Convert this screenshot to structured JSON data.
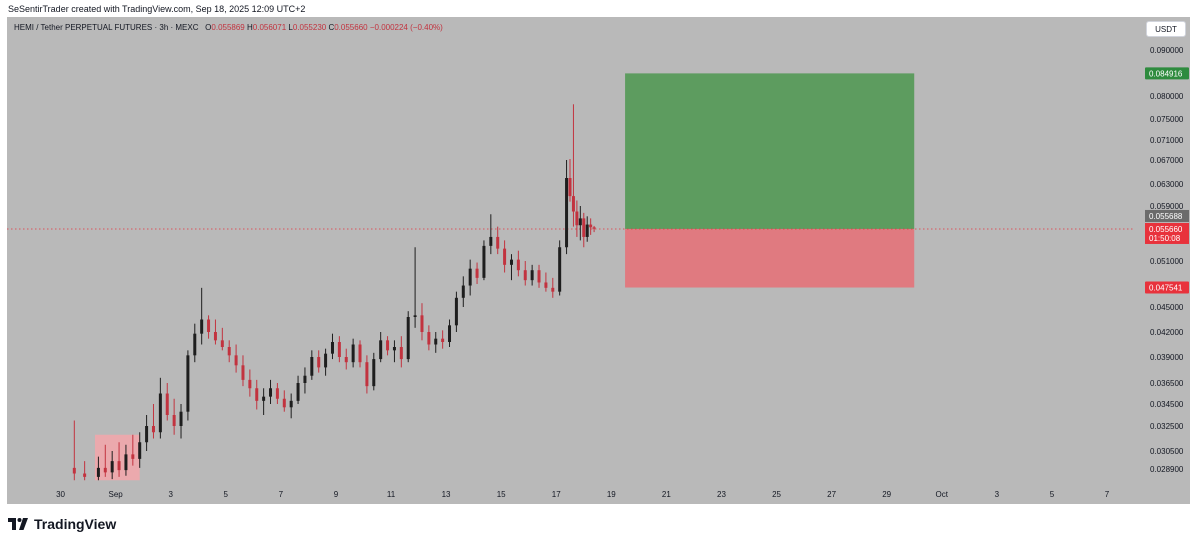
{
  "header": {
    "credit": "SeSentirTrader created with TradingView.com, Sep 18, 2025 12:09 UTC+2"
  },
  "legend": {
    "symbol": "HEMI / Tether PERPETUAL FUTURES · 3h · MEXC",
    "open_label": "O",
    "open": "0.055869",
    "high_label": "H",
    "high": "0.056071",
    "low_label": "L",
    "low": "0.055230",
    "close_label": "C",
    "close": "0.055660",
    "change": "−0.000224 (−0.40%)"
  },
  "currency_button": "USDT",
  "footer": {
    "logo_text": "TradingView"
  },
  "colors": {
    "background": "#b9b9b9",
    "up_candle": "#1e1e1e",
    "down_candle": "#c2333f",
    "target_zone": "#5d9c5f",
    "stop_zone": "#e07a80",
    "target_label": "#2e8b3e",
    "stop_label": "#e8323c",
    "price_line": "#e8323c"
  },
  "chart_data": {
    "type": "candlestick",
    "title": "HEMI / Tether PERPETUAL FUTURES · 3h · MEXC",
    "xlabel": "",
    "ylabel": "",
    "ylim": [
      0.0279,
      0.0927
    ],
    "x_range": [
      "2025-08-29",
      "2025-10-07"
    ],
    "grid": false,
    "x_ticks": [
      {
        "date": "2025-08-30",
        "label": "30"
      },
      {
        "date": "2025-09-01",
        "label": "Sep"
      },
      {
        "date": "2025-09-03",
        "label": "3"
      },
      {
        "date": "2025-09-05",
        "label": "5"
      },
      {
        "date": "2025-09-07",
        "label": "7"
      },
      {
        "date": "2025-09-09",
        "label": "9"
      },
      {
        "date": "2025-09-11",
        "label": "11"
      },
      {
        "date": "2025-09-13",
        "label": "13"
      },
      {
        "date": "2025-09-15",
        "label": "15"
      },
      {
        "date": "2025-09-17",
        "label": "17"
      },
      {
        "date": "2025-09-19",
        "label": "19"
      },
      {
        "date": "2025-09-21",
        "label": "21"
      },
      {
        "date": "2025-09-23",
        "label": "23"
      },
      {
        "date": "2025-09-25",
        "label": "25"
      },
      {
        "date": "2025-09-27",
        "label": "27"
      },
      {
        "date": "2025-09-29",
        "label": "29"
      },
      {
        "date": "2025-10-01",
        "label": "Oct"
      },
      {
        "date": "2025-10-03",
        "label": "3"
      },
      {
        "date": "2025-10-05",
        "label": "5"
      },
      {
        "date": "2025-10-07",
        "label": "7"
      }
    ],
    "y_ticks": [
      "0.090000",
      "0.080000",
      "0.075000",
      "0.071000",
      "0.067000",
      "0.063000",
      "0.059000",
      "0.051000",
      "0.045000",
      "0.042000",
      "0.039000",
      "0.036500",
      "0.034500",
      "0.032500",
      "0.030500",
      "0.028900"
    ],
    "price_labels": {
      "target": "0.084916",
      "current": "0.055688",
      "last": "0.055660",
      "countdown": "01:50:08",
      "stop": "0.047541"
    },
    "position": {
      "entry": 0.05566,
      "target": 0.084916,
      "stop": 0.047541,
      "start": "2025-09-19",
      "end": "2025-09-30"
    },
    "highlight_zone": {
      "start": "2025-08-31",
      "end": "2025-09-01",
      "low": 0.0279,
      "high": 0.0318
    },
    "candles": [
      {
        "t": "2025-08-30T12:00",
        "o": 0.029,
        "h": 0.033,
        "l": 0.0279,
        "c": 0.0285
      },
      {
        "t": "2025-08-30T21:00",
        "o": 0.0285,
        "h": 0.0296,
        "l": 0.0279,
        "c": 0.0282
      },
      {
        "t": "2025-08-31T09:00",
        "o": 0.0282,
        "h": 0.03,
        "l": 0.0279,
        "c": 0.029
      },
      {
        "t": "2025-08-31T15:00",
        "o": 0.029,
        "h": 0.031,
        "l": 0.0282,
        "c": 0.0286
      },
      {
        "t": "2025-08-31T21:00",
        "o": 0.0286,
        "h": 0.0305,
        "l": 0.028,
        "c": 0.0296
      },
      {
        "t": "2025-09-01T03:00",
        "o": 0.0296,
        "h": 0.0312,
        "l": 0.0282,
        "c": 0.0288
      },
      {
        "t": "2025-09-01T09:00",
        "o": 0.0288,
        "h": 0.031,
        "l": 0.0283,
        "c": 0.0302
      },
      {
        "t": "2025-09-01T15:00",
        "o": 0.0302,
        "h": 0.0318,
        "l": 0.0292,
        "c": 0.0298
      },
      {
        "t": "2025-09-01T21:00",
        "o": 0.0298,
        "h": 0.032,
        "l": 0.029,
        "c": 0.0312
      },
      {
        "t": "2025-09-02T03:00",
        "o": 0.0312,
        "h": 0.0335,
        "l": 0.0305,
        "c": 0.0325
      },
      {
        "t": "2025-09-02T09:00",
        "o": 0.0325,
        "h": 0.0345,
        "l": 0.0315,
        "c": 0.032
      },
      {
        "t": "2025-09-02T15:00",
        "o": 0.032,
        "h": 0.037,
        "l": 0.0315,
        "c": 0.0355
      },
      {
        "t": "2025-09-02T21:00",
        "o": 0.0355,
        "h": 0.0365,
        "l": 0.033,
        "c": 0.0335
      },
      {
        "t": "2025-09-03T03:00",
        "o": 0.0335,
        "h": 0.035,
        "l": 0.0318,
        "c": 0.0325
      },
      {
        "t": "2025-09-03T09:00",
        "o": 0.0325,
        "h": 0.0345,
        "l": 0.0315,
        "c": 0.0338
      },
      {
        "t": "2025-09-03T15:00",
        "o": 0.0338,
        "h": 0.0398,
        "l": 0.033,
        "c": 0.0392
      },
      {
        "t": "2025-09-03T21:00",
        "o": 0.0392,
        "h": 0.043,
        "l": 0.0385,
        "c": 0.0418
      },
      {
        "t": "2025-09-04T03:00",
        "o": 0.0418,
        "h": 0.0475,
        "l": 0.0405,
        "c": 0.0435
      },
      {
        "t": "2025-09-04T09:00",
        "o": 0.0435,
        "h": 0.044,
        "l": 0.0412,
        "c": 0.042
      },
      {
        "t": "2025-09-04T15:00",
        "o": 0.042,
        "h": 0.0435,
        "l": 0.0405,
        "c": 0.041
      },
      {
        "t": "2025-09-04T21:00",
        "o": 0.041,
        "h": 0.0425,
        "l": 0.0398,
        "c": 0.0402
      },
      {
        "t": "2025-09-05T03:00",
        "o": 0.0402,
        "h": 0.041,
        "l": 0.0385,
        "c": 0.0392
      },
      {
        "t": "2025-09-05T09:00",
        "o": 0.0392,
        "h": 0.0405,
        "l": 0.0375,
        "c": 0.0382
      },
      {
        "t": "2025-09-05T15:00",
        "o": 0.0382,
        "h": 0.0392,
        "l": 0.0362,
        "c": 0.0368
      },
      {
        "t": "2025-09-05T21:00",
        "o": 0.0368,
        "h": 0.0378,
        "l": 0.0352,
        "c": 0.036
      },
      {
        "t": "2025-09-06T03:00",
        "o": 0.036,
        "h": 0.0368,
        "l": 0.034,
        "c": 0.0348
      },
      {
        "t": "2025-09-06T09:00",
        "o": 0.0348,
        "h": 0.036,
        "l": 0.0335,
        "c": 0.0352
      },
      {
        "t": "2025-09-06T15:00",
        "o": 0.0352,
        "h": 0.0368,
        "l": 0.0345,
        "c": 0.036
      },
      {
        "t": "2025-09-06T21:00",
        "o": 0.036,
        "h": 0.0365,
        "l": 0.0345,
        "c": 0.035
      },
      {
        "t": "2025-09-07T03:00",
        "o": 0.035,
        "h": 0.0358,
        "l": 0.0338,
        "c": 0.0342
      },
      {
        "t": "2025-09-07T09:00",
        "o": 0.0342,
        "h": 0.0355,
        "l": 0.0332,
        "c": 0.0348
      },
      {
        "t": "2025-09-07T15:00",
        "o": 0.0348,
        "h": 0.0372,
        "l": 0.0345,
        "c": 0.0365
      },
      {
        "t": "2025-09-07T21:00",
        "o": 0.0365,
        "h": 0.038,
        "l": 0.0355,
        "c": 0.0372
      },
      {
        "t": "2025-09-08T03:00",
        "o": 0.0372,
        "h": 0.0398,
        "l": 0.0368,
        "c": 0.039
      },
      {
        "t": "2025-09-08T09:00",
        "o": 0.039,
        "h": 0.0398,
        "l": 0.0375,
        "c": 0.038
      },
      {
        "t": "2025-09-08T15:00",
        "o": 0.038,
        "h": 0.04,
        "l": 0.0372,
        "c": 0.0394
      },
      {
        "t": "2025-09-08T21:00",
        "o": 0.0394,
        "h": 0.0418,
        "l": 0.0388,
        "c": 0.0408
      },
      {
        "t": "2025-09-09T03:00",
        "o": 0.0408,
        "h": 0.0415,
        "l": 0.0385,
        "c": 0.039
      },
      {
        "t": "2025-09-09T09:00",
        "o": 0.039,
        "h": 0.04,
        "l": 0.0378,
        "c": 0.0385
      },
      {
        "t": "2025-09-09T15:00",
        "o": 0.0385,
        "h": 0.0412,
        "l": 0.038,
        "c": 0.0405
      },
      {
        "t": "2025-09-09T21:00",
        "o": 0.0405,
        "h": 0.041,
        "l": 0.038,
        "c": 0.0385
      },
      {
        "t": "2025-09-10T03:00",
        "o": 0.0385,
        "h": 0.0392,
        "l": 0.0355,
        "c": 0.0362
      },
      {
        "t": "2025-09-10T09:00",
        "o": 0.0362,
        "h": 0.0395,
        "l": 0.0358,
        "c": 0.0388
      },
      {
        "t": "2025-09-10T15:00",
        "o": 0.0388,
        "h": 0.042,
        "l": 0.0385,
        "c": 0.041
      },
      {
        "t": "2025-09-10T21:00",
        "o": 0.041,
        "h": 0.0415,
        "l": 0.0392,
        "c": 0.0398
      },
      {
        "t": "2025-09-11T03:00",
        "o": 0.0398,
        "h": 0.041,
        "l": 0.0385,
        "c": 0.0402
      },
      {
        "t": "2025-09-11T09:00",
        "o": 0.0402,
        "h": 0.0415,
        "l": 0.038,
        "c": 0.0388
      },
      {
        "t": "2025-09-11T15:00",
        "o": 0.0388,
        "h": 0.0445,
        "l": 0.0385,
        "c": 0.0438
      },
      {
        "t": "2025-09-11T21:00",
        "o": 0.0438,
        "h": 0.053,
        "l": 0.0425,
        "c": 0.044
      },
      {
        "t": "2025-09-12T03:00",
        "o": 0.044,
        "h": 0.0455,
        "l": 0.041,
        "c": 0.042
      },
      {
        "t": "2025-09-12T09:00",
        "o": 0.042,
        "h": 0.0428,
        "l": 0.0398,
        "c": 0.0405
      },
      {
        "t": "2025-09-12T15:00",
        "o": 0.0405,
        "h": 0.042,
        "l": 0.0395,
        "c": 0.0412
      },
      {
        "t": "2025-09-12T21:00",
        "o": 0.0412,
        "h": 0.0422,
        "l": 0.04,
        "c": 0.0408
      },
      {
        "t": "2025-09-13T03:00",
        "o": 0.0408,
        "h": 0.0435,
        "l": 0.0402,
        "c": 0.0428
      },
      {
        "t": "2025-09-13T09:00",
        "o": 0.0428,
        "h": 0.047,
        "l": 0.042,
        "c": 0.0462
      },
      {
        "t": "2025-09-13T15:00",
        "o": 0.0462,
        "h": 0.049,
        "l": 0.045,
        "c": 0.0478
      },
      {
        "t": "2025-09-13T21:00",
        "o": 0.0478,
        "h": 0.0512,
        "l": 0.0465,
        "c": 0.05
      },
      {
        "t": "2025-09-14T03:00",
        "o": 0.05,
        "h": 0.0508,
        "l": 0.048,
        "c": 0.0488
      },
      {
        "t": "2025-09-14T09:00",
        "o": 0.0488,
        "h": 0.054,
        "l": 0.0485,
        "c": 0.0532
      },
      {
        "t": "2025-09-14T15:00",
        "o": 0.0532,
        "h": 0.0578,
        "l": 0.052,
        "c": 0.0545
      },
      {
        "t": "2025-09-14T21:00",
        "o": 0.0545,
        "h": 0.056,
        "l": 0.052,
        "c": 0.0528
      },
      {
        "t": "2025-09-15T03:00",
        "o": 0.0528,
        "h": 0.054,
        "l": 0.0495,
        "c": 0.0505
      },
      {
        "t": "2025-09-15T09:00",
        "o": 0.0505,
        "h": 0.052,
        "l": 0.0485,
        "c": 0.0512
      },
      {
        "t": "2025-09-15T15:00",
        "o": 0.0512,
        "h": 0.0525,
        "l": 0.049,
        "c": 0.0498
      },
      {
        "t": "2025-09-15T21:00",
        "o": 0.0498,
        "h": 0.051,
        "l": 0.0478,
        "c": 0.0485
      },
      {
        "t": "2025-09-16T03:00",
        "o": 0.0485,
        "h": 0.0505,
        "l": 0.0478,
        "c": 0.0498
      },
      {
        "t": "2025-09-16T09:00",
        "o": 0.0498,
        "h": 0.0505,
        "l": 0.0475,
        "c": 0.0482
      },
      {
        "t": "2025-09-16T15:00",
        "o": 0.0482,
        "h": 0.0495,
        "l": 0.047,
        "c": 0.0475
      },
      {
        "t": "2025-09-16T21:00",
        "o": 0.0475,
        "h": 0.0488,
        "l": 0.0462,
        "c": 0.047
      },
      {
        "t": "2025-09-17T03:00",
        "o": 0.047,
        "h": 0.054,
        "l": 0.0465,
        "c": 0.053
      },
      {
        "t": "2025-09-17T09:00",
        "o": 0.053,
        "h": 0.067,
        "l": 0.052,
        "c": 0.064
      },
      {
        "t": "2025-09-17T12:00",
        "o": 0.064,
        "h": 0.0672,
        "l": 0.0598,
        "c": 0.0608
      },
      {
        "t": "2025-09-17T15:00",
        "o": 0.0608,
        "h": 0.0782,
        "l": 0.056,
        "c": 0.0582
      },
      {
        "t": "2025-09-17T18:00",
        "o": 0.0582,
        "h": 0.06,
        "l": 0.0545,
        "c": 0.0562
      },
      {
        "t": "2025-09-17T21:00",
        "o": 0.0562,
        "h": 0.059,
        "l": 0.054,
        "c": 0.0572
      },
      {
        "t": "2025-09-18T00:00",
        "o": 0.0572,
        "h": 0.058,
        "l": 0.053,
        "c": 0.0545
      },
      {
        "t": "2025-09-18T03:00",
        "o": 0.0545,
        "h": 0.0575,
        "l": 0.0538,
        "c": 0.0563
      },
      {
        "t": "2025-09-18T06:00",
        "o": 0.0563,
        "h": 0.0572,
        "l": 0.0548,
        "c": 0.0559
      },
      {
        "t": "2025-09-18T09:00",
        "o": 0.0559,
        "h": 0.0561,
        "l": 0.0552,
        "c": 0.0557
      }
    ]
  }
}
